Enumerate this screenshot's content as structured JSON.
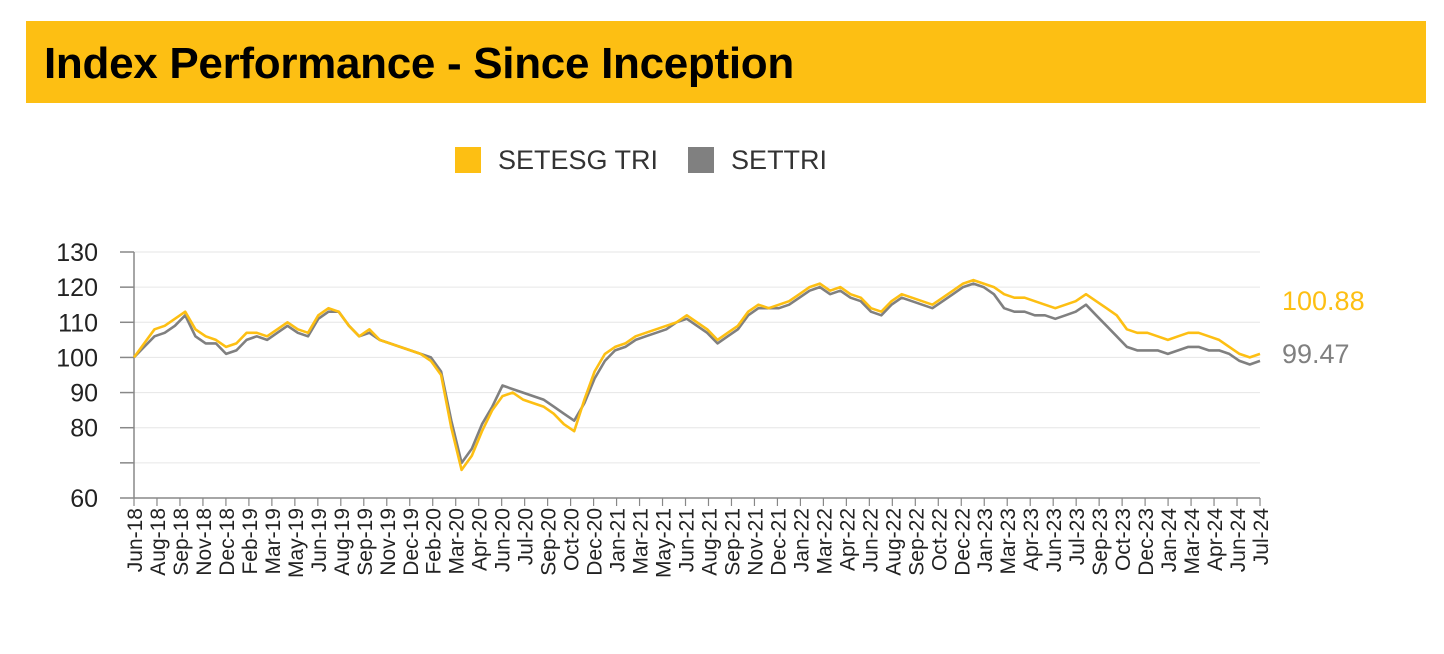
{
  "title": "Index Performance - Since Inception",
  "colors": {
    "title_bg": "#FDBF13",
    "setesg": "#FDBF13",
    "settri": "#808080",
    "grid": "#e6e6e6",
    "axis": "#888888"
  },
  "chart_data": {
    "type": "line",
    "title": "",
    "xlabel": "",
    "ylabel": "",
    "legend_position": "top-center",
    "grid": true,
    "ylim": [
      60,
      130
    ],
    "yticks": [
      130,
      120,
      110,
      100,
      90,
      80,
      60
    ],
    "x_tick_labels": [
      "Jun-18",
      "Aug-18",
      "Sep-18",
      "Nov-18",
      "Dec-18",
      "Feb-19",
      "Mar-19",
      "May-19",
      "Jun-19",
      "Aug-19",
      "Sep-19",
      "Nov-19",
      "Dec-19",
      "Feb-20",
      "Mar-20",
      "Apr-20",
      "Jun-20",
      "Jul-20",
      "Sep-20",
      "Oct-20",
      "Dec-20",
      "Jan-21",
      "Mar-21",
      "May-21",
      "Jun-21",
      "Aug-21",
      "Sep-21",
      "Nov-21",
      "Dec-21",
      "Jan-22",
      "Mar-22",
      "Apr-22",
      "Jun-22",
      "Aug-22",
      "Sep-22",
      "Oct-22",
      "Dec-22",
      "Jan-23",
      "Mar-23",
      "Apr-23",
      "Jun-23",
      "Jul-23",
      "Sep-23",
      "Oct-23",
      "Dec-23",
      "Jan-24",
      "Mar-24",
      "Apr-24",
      "Jun-24",
      "Jul-24"
    ],
    "series": [
      {
        "name": "SETESG TRI",
        "end_value": "100.88",
        "values": [
          100,
          104,
          108,
          109,
          111,
          113,
          108,
          106,
          105,
          103,
          104,
          107,
          107,
          106,
          108,
          110,
          108,
          107,
          112,
          114,
          113,
          109,
          106,
          108,
          105,
          104,
          103,
          102,
          101,
          99,
          95,
          80,
          68,
          72,
          79,
          85,
          89,
          90,
          88,
          87,
          86,
          84,
          81,
          79,
          88,
          96,
          101,
          103,
          104,
          106,
          107,
          108,
          109,
          110,
          112,
          110,
          108,
          105,
          107,
          109,
          113,
          115,
          114,
          115,
          116,
          118,
          120,
          121,
          119,
          120,
          118,
          117,
          114,
          113,
          116,
          118,
          117,
          116,
          115,
          117,
          119,
          121,
          122,
          121,
          120,
          118,
          117,
          117,
          116,
          115,
          114,
          115,
          116,
          118,
          116,
          114,
          112,
          108,
          107,
          107,
          106,
          105,
          106,
          107,
          107,
          106,
          105,
          103,
          101,
          100,
          101
        ]
      },
      {
        "name": "SETTRI",
        "end_value": "99.47",
        "values": [
          100,
          103,
          106,
          107,
          109,
          112,
          106,
          104,
          104,
          101,
          102,
          105,
          106,
          105,
          107,
          109,
          107,
          106,
          111,
          113,
          113,
          109,
          106,
          107,
          105,
          104,
          103,
          102,
          101,
          100,
          96,
          82,
          70,
          74,
          81,
          86,
          92,
          91,
          90,
          89,
          88,
          86,
          84,
          82,
          87,
          94,
          99,
          102,
          103,
          105,
          106,
          107,
          108,
          110,
          111,
          109,
          107,
          104,
          106,
          108,
          112,
          114,
          114,
          114,
          115,
          117,
          119,
          120,
          118,
          119,
          117,
          116,
          113,
          112,
          115,
          117,
          116,
          115,
          114,
          116,
          118,
          120,
          121,
          120,
          118,
          114,
          113,
          113,
          112,
          112,
          111,
          112,
          113,
          115,
          112,
          109,
          106,
          103,
          102,
          102,
          102,
          101,
          102,
          103,
          103,
          102,
          102,
          101,
          99,
          98,
          99
        ]
      }
    ]
  }
}
